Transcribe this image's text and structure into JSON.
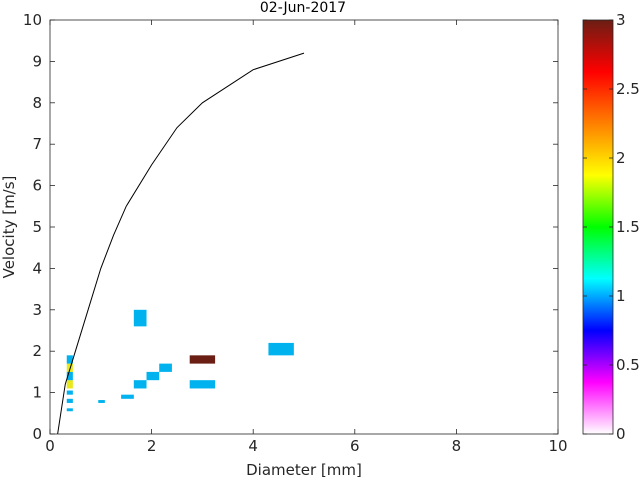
{
  "chart_data": {
    "type": "heatmap",
    "title": "02-Jun-2017",
    "xlabel": "Diameter [mm]",
    "ylabel": "Velocity [m/s]",
    "xlim": [
      0,
      10
    ],
    "ylim": [
      0,
      10
    ],
    "xticks": [
      "0",
      "2",
      "4",
      "6",
      "8",
      "10"
    ],
    "yticks": [
      "0",
      "1",
      "2",
      "3",
      "4",
      "5",
      "6",
      "7",
      "8",
      "9",
      "10"
    ],
    "grid": false,
    "colorbar": {
      "range": [
        0,
        3
      ],
      "ticks": [
        "0",
        "0.5",
        "1",
        "1.5",
        "2",
        "2.5",
        "3"
      ],
      "colors": [
        "#ffffff",
        "#ff00ff",
        "#0000ff",
        "#00ffff",
        "#00ff00",
        "#ffff00",
        "#ff8000",
        "#ff0000",
        "#6b1e14"
      ]
    },
    "cells": [
      {
        "x0": 0.33,
        "x1": 0.45,
        "y0": 0.55,
        "y1": 0.62,
        "value": 1
      },
      {
        "x0": 0.33,
        "x1": 0.45,
        "y0": 0.75,
        "y1": 0.85,
        "value": 1
      },
      {
        "x0": 0.33,
        "x1": 0.45,
        "y0": 0.95,
        "y1": 1.05,
        "value": 1
      },
      {
        "x0": 0.33,
        "x1": 0.45,
        "y0": 1.1,
        "y1": 1.3,
        "value": 2
      },
      {
        "x0": 0.33,
        "x1": 0.45,
        "y0": 1.3,
        "y1": 1.5,
        "value": 1
      },
      {
        "x0": 0.33,
        "x1": 0.45,
        "y0": 1.5,
        "y1": 1.7,
        "value": 2
      },
      {
        "x0": 0.33,
        "x1": 0.45,
        "y0": 1.7,
        "y1": 1.9,
        "value": 1
      },
      {
        "x0": 0.95,
        "x1": 1.08,
        "y0": 0.75,
        "y1": 0.82,
        "value": 1
      },
      {
        "x0": 1.4,
        "x1": 1.65,
        "y0": 0.85,
        "y1": 0.95,
        "value": 1
      },
      {
        "x0": 1.65,
        "x1": 1.9,
        "y0": 1.1,
        "y1": 1.3,
        "value": 1
      },
      {
        "x0": 1.9,
        "x1": 2.15,
        "y0": 1.3,
        "y1": 1.5,
        "value": 1
      },
      {
        "x0": 2.15,
        "x1": 2.4,
        "y0": 1.5,
        "y1": 1.7,
        "value": 1
      },
      {
        "x0": 1.65,
        "x1": 1.9,
        "y0": 2.6,
        "y1": 3.0,
        "value": 1
      },
      {
        "x0": 2.75,
        "x1": 3.25,
        "y0": 1.1,
        "y1": 1.3,
        "value": 1
      },
      {
        "x0": 2.75,
        "x1": 3.25,
        "y0": 1.7,
        "y1": 1.9,
        "value": 3
      },
      {
        "x0": 4.3,
        "x1": 4.8,
        "y0": 1.9,
        "y1": 2.2,
        "value": 1
      }
    ],
    "curve": {
      "x": [
        0.15,
        0.3,
        0.5,
        0.75,
        1.0,
        1.25,
        1.5,
        2.0,
        2.5,
        3.0,
        4.0,
        5.0
      ],
      "y": [
        0.0,
        1.2,
        2.0,
        3.0,
        4.0,
        4.8,
        5.5,
        6.5,
        7.4,
        8.0,
        8.8,
        9.2
      ]
    }
  }
}
